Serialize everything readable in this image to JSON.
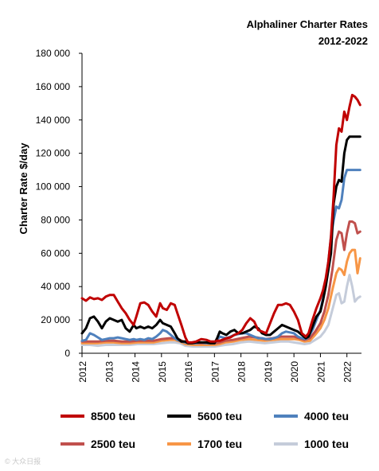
{
  "chart_data": {
    "type": "line",
    "title": "Alphaliner Charter Rates",
    "subtitle": "2012-2022",
    "ylabel": "Charter Rate $/day",
    "xlabel": "",
    "ylim": [
      0,
      180000
    ],
    "xlim": [
      2012,
      2022.55
    ],
    "grid": false,
    "legend_position": "bottom",
    "y_ticks": [
      "0",
      "20 000",
      "40 000",
      "60 000",
      "80 000",
      "100 000",
      "120 000",
      "140 000",
      "160 000",
      "180 000"
    ],
    "x_ticks": [
      "2012",
      "2013",
      "2014",
      "2015",
      "2016",
      "2017",
      "2018",
      "2019",
      "2020",
      "2021",
      "2022"
    ],
    "series": [
      {
        "name": "8500 teu",
        "color": "#c00000",
        "x": [
          2012.0,
          2012.15,
          2012.3,
          2012.45,
          2012.6,
          2012.75,
          2012.9,
          2013.05,
          2013.2,
          2013.35,
          2013.5,
          2013.65,
          2013.8,
          2013.95,
          2014.05,
          2014.2,
          2014.35,
          2014.5,
          2014.65,
          2014.8,
          2014.95,
          2015.05,
          2015.2,
          2015.35,
          2015.5,
          2015.6,
          2015.75,
          2015.9,
          2016.0,
          2016.15,
          2016.3,
          2016.5,
          2016.7,
          2016.85,
          2017.0,
          2017.1,
          2017.2,
          2017.3,
          2017.45,
          2017.6,
          2017.75,
          2017.9,
          2018.05,
          2018.2,
          2018.35,
          2018.5,
          2018.65,
          2018.8,
          2018.95,
          2019.1,
          2019.25,
          2019.4,
          2019.55,
          2019.7,
          2019.85,
          2020.0,
          2020.15,
          2020.3,
          2020.45,
          2020.55,
          2020.7,
          2020.85,
          2021.0,
          2021.1,
          2021.2,
          2021.3,
          2021.4,
          2021.5,
          2021.6,
          2021.7,
          2021.8,
          2021.9,
          2022.0,
          2022.1,
          2022.2,
          2022.3,
          2022.4,
          2022.5
        ],
        "values": [
          33000,
          31500,
          33500,
          32500,
          33000,
          32000,
          34000,
          35000,
          35000,
          31000,
          27000,
          24000,
          20000,
          17000,
          22000,
          30000,
          30500,
          29000,
          25000,
          22000,
          30000,
          27000,
          26000,
          30000,
          29000,
          24000,
          17000,
          9500,
          6500,
          6500,
          7000,
          8500,
          8000,
          7000,
          7000,
          7500,
          7500,
          8000,
          9000,
          9500,
          11000,
          12000,
          14000,
          18000,
          21000,
          19000,
          14000,
          13000,
          12000,
          18000,
          24000,
          29000,
          29000,
          30000,
          29000,
          25000,
          20000,
          12000,
          10000,
          12000,
          20000,
          27000,
          33000,
          38000,
          45000,
          55000,
          70000,
          95000,
          125000,
          135000,
          133000,
          145000,
          140000,
          148000,
          155000,
          154000,
          152000,
          149000
        ]
      },
      {
        "name": "5600 teu",
        "color": "#000000",
        "x": [
          2012.0,
          2012.15,
          2012.3,
          2012.45,
          2012.6,
          2012.75,
          2012.9,
          2013.05,
          2013.2,
          2013.35,
          2013.5,
          2013.65,
          2013.8,
          2013.95,
          2014.05,
          2014.2,
          2014.35,
          2014.5,
          2014.65,
          2014.8,
          2014.95,
          2015.05,
          2015.2,
          2015.35,
          2015.5,
          2015.6,
          2015.75,
          2015.9,
          2016.0,
          2016.15,
          2016.3,
          2016.5,
          2016.7,
          2016.85,
          2017.0,
          2017.1,
          2017.2,
          2017.3,
          2017.45,
          2017.6,
          2017.75,
          2017.9,
          2018.05,
          2018.2,
          2018.35,
          2018.5,
          2018.65,
          2018.8,
          2018.95,
          2019.1,
          2019.25,
          2019.4,
          2019.55,
          2019.7,
          2019.85,
          2020.0,
          2020.15,
          2020.3,
          2020.45,
          2020.55,
          2020.7,
          2020.85,
          2021.0,
          2021.1,
          2021.2,
          2021.3,
          2021.4,
          2021.5,
          2021.6,
          2021.7,
          2021.8,
          2021.9,
          2022.0,
          2022.1,
          2022.2,
          2022.3,
          2022.4,
          2022.5
        ],
        "values": [
          12000,
          15000,
          21000,
          22000,
          19000,
          15000,
          19000,
          21000,
          20000,
          19000,
          20000,
          15000,
          13000,
          17000,
          15000,
          16000,
          15000,
          16000,
          15000,
          17000,
          20000,
          18000,
          17000,
          16000,
          12000,
          9000,
          7000,
          7000,
          6000,
          6000,
          6500,
          6500,
          6500,
          6000,
          6000,
          9000,
          13000,
          12000,
          11000,
          13000,
          14000,
          12000,
          12000,
          13000,
          14000,
          16000,
          15000,
          12000,
          11000,
          11000,
          13000,
          15000,
          17000,
          16000,
          15000,
          14000,
          13000,
          11000,
          9000,
          10000,
          16000,
          22000,
          25000,
          32000,
          40000,
          50000,
          60000,
          90000,
          100000,
          104000,
          103000,
          120000,
          128000,
          130000,
          130000,
          130000,
          130000,
          130000
        ]
      },
      {
        "name": "4000 teu",
        "color": "#4f81bd",
        "x": [
          2012.0,
          2012.15,
          2012.3,
          2012.45,
          2012.6,
          2012.75,
          2012.9,
          2013.05,
          2013.2,
          2013.35,
          2013.5,
          2013.65,
          2013.8,
          2013.95,
          2014.05,
          2014.2,
          2014.35,
          2014.5,
          2014.65,
          2014.8,
          2014.95,
          2015.05,
          2015.2,
          2015.35,
          2015.5,
          2015.6,
          2015.75,
          2015.9,
          2016.0,
          2016.15,
          2016.3,
          2016.5,
          2016.7,
          2016.85,
          2017.0,
          2017.1,
          2017.2,
          2017.3,
          2017.45,
          2017.6,
          2017.75,
          2017.9,
          2018.05,
          2018.2,
          2018.35,
          2018.5,
          2018.65,
          2018.8,
          2018.95,
          2019.1,
          2019.25,
          2019.4,
          2019.55,
          2019.7,
          2019.85,
          2020.0,
          2020.15,
          2020.3,
          2020.45,
          2020.55,
          2020.7,
          2020.85,
          2021.0,
          2021.1,
          2021.2,
          2021.3,
          2021.4,
          2021.5,
          2021.6,
          2021.7,
          2021.8,
          2021.9,
          2022.0,
          2022.1,
          2022.2,
          2022.3,
          2022.4,
          2022.5
        ],
        "values": [
          7500,
          8000,
          12000,
          11000,
          9500,
          8000,
          8500,
          9000,
          9000,
          9500,
          9000,
          8500,
          8000,
          8500,
          8000,
          8500,
          8000,
          9000,
          8500,
          10000,
          12000,
          14000,
          13000,
          11000,
          9000,
          8000,
          7000,
          6500,
          6000,
          6000,
          6000,
          6500,
          6000,
          6000,
          6000,
          8000,
          10000,
          9500,
          9000,
          10000,
          11000,
          11500,
          12000,
          12000,
          11000,
          10000,
          9000,
          9000,
          8500,
          8500,
          9000,
          10000,
          12000,
          13000,
          12500,
          12000,
          10000,
          9000,
          8500,
          10000,
          14000,
          20000,
          26000,
          33000,
          42000,
          55000,
          70000,
          80000,
          88000,
          87000,
          92000,
          105000,
          110000,
          110000,
          110000,
          110000,
          110000,
          110000
        ]
      },
      {
        "name": "2500 teu",
        "color": "#c0504d",
        "x": [
          2012.0,
          2012.3,
          2012.6,
          2012.9,
          2013.2,
          2013.5,
          2013.8,
          2014.1,
          2014.4,
          2014.7,
          2015.0,
          2015.3,
          2015.5,
          2015.7,
          2015.9,
          2016.2,
          2016.5,
          2016.8,
          2017.0,
          2017.2,
          2017.4,
          2017.7,
          2018.0,
          2018.3,
          2018.6,
          2018.9,
          2019.2,
          2019.5,
          2019.8,
          2020.0,
          2020.2,
          2020.4,
          2020.6,
          2020.8,
          2021.0,
          2021.15,
          2021.3,
          2021.45,
          2021.6,
          2021.7,
          2021.8,
          2021.9,
          2022.0,
          2022.1,
          2022.2,
          2022.3,
          2022.4,
          2022.5
        ],
        "values": [
          7000,
          7000,
          7000,
          7500,
          7500,
          7000,
          7000,
          7500,
          7500,
          7500,
          8500,
          9000,
          9000,
          8000,
          6500,
          6000,
          6000,
          6000,
          6000,
          6500,
          7500,
          8000,
          9000,
          10000,
          9500,
          8500,
          9000,
          10000,
          10000,
          10000,
          9000,
          8000,
          9000,
          13000,
          18000,
          25000,
          35000,
          50000,
          68000,
          73000,
          72000,
          62000,
          72000,
          79000,
          79000,
          78000,
          72000,
          73000
        ]
      },
      {
        "name": "1700 teu",
        "color": "#f79646",
        "x": [
          2012.0,
          2012.3,
          2012.6,
          2012.9,
          2013.2,
          2013.5,
          2013.8,
          2014.1,
          2014.4,
          2014.7,
          2015.0,
          2015.3,
          2015.5,
          2015.7,
          2015.9,
          2016.2,
          2016.5,
          2016.8,
          2017.0,
          2017.2,
          2017.4,
          2017.7,
          2018.0,
          2018.3,
          2018.6,
          2018.9,
          2019.2,
          2019.5,
          2019.8,
          2020.0,
          2020.2,
          2020.4,
          2020.6,
          2020.8,
          2021.0,
          2021.15,
          2021.3,
          2021.45,
          2021.6,
          2021.7,
          2021.8,
          2021.9,
          2022.0,
          2022.1,
          2022.2,
          2022.3,
          2022.4,
          2022.5
        ],
        "values": [
          6000,
          6000,
          6000,
          6500,
          6500,
          6000,
          6000,
          6500,
          6500,
          6500,
          7500,
          8000,
          8000,
          7000,
          5500,
          5000,
          5000,
          5000,
          5000,
          5500,
          6500,
          7000,
          8000,
          8500,
          8000,
          7500,
          8000,
          8500,
          8500,
          8500,
          8000,
          7000,
          7500,
          11000,
          15000,
          20000,
          27000,
          38000,
          48000,
          51000,
          50000,
          47000,
          55000,
          60000,
          62000,
          62000,
          48000,
          57000
        ]
      },
      {
        "name": "1000 teu",
        "color": "#c5ccda",
        "x": [
          2012.0,
          2012.3,
          2012.6,
          2012.9,
          2013.2,
          2013.5,
          2013.8,
          2014.1,
          2014.4,
          2014.7,
          2015.0,
          2015.3,
          2015.5,
          2015.7,
          2015.9,
          2016.2,
          2016.5,
          2016.8,
          2017.0,
          2017.2,
          2017.4,
          2017.7,
          2018.0,
          2018.3,
          2018.6,
          2018.9,
          2019.2,
          2019.5,
          2019.8,
          2020.0,
          2020.2,
          2020.4,
          2020.6,
          2020.8,
          2021.0,
          2021.15,
          2021.3,
          2021.45,
          2021.6,
          2021.7,
          2021.8,
          2021.9,
          2022.0,
          2022.1,
          2022.2,
          2022.3,
          2022.4,
          2022.5
        ],
        "values": [
          5000,
          5000,
          4500,
          5000,
          5000,
          5000,
          5000,
          5500,
          5500,
          5500,
          6000,
          6500,
          6500,
          6000,
          4500,
          4000,
          4000,
          4000,
          4000,
          4500,
          5000,
          5500,
          6500,
          7000,
          6500,
          6000,
          6500,
          7000,
          7000,
          6500,
          6000,
          5500,
          6000,
          8000,
          10000,
          13000,
          17000,
          26000,
          35000,
          36000,
          30000,
          31000,
          40000,
          47000,
          40000,
          31000,
          33000,
          34000
        ]
      }
    ]
  },
  "watermark": "© 大众日报"
}
